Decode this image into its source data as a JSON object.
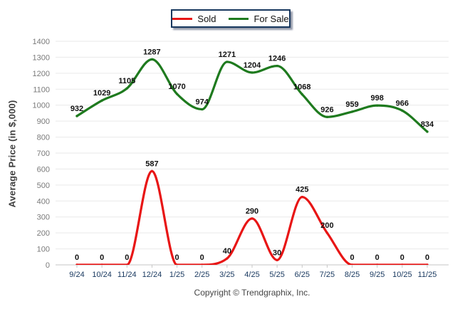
{
  "ylabel": "Average Price (in $,000)",
  "footer": "Copyright © Trendgraphix, Inc.",
  "colors": {
    "sold": "#e81515",
    "for_sale": "#1e7a1e",
    "grid": "#e9e9e9",
    "axis": "#c6c6c6",
    "y_tick_text": "#7a7a7a",
    "x_tick_text": "#17375e",
    "data_label": "#111111",
    "legend_border": "#17375e"
  },
  "chart_data": {
    "type": "line",
    "x": [
      "9/24",
      "10/24",
      "11/24",
      "12/24",
      "1/25",
      "2/25",
      "3/25",
      "4/25",
      "5/25",
      "6/25",
      "7/25",
      "8/25",
      "9/25",
      "10/25",
      "11/25"
    ],
    "series": [
      {
        "name": "Sold",
        "color": "#e81515",
        "values": [
          0,
          0,
          0,
          587,
          0,
          0,
          40,
          290,
          30,
          425,
          200,
          0,
          0,
          0,
          0
        ]
      },
      {
        "name": "For Sale",
        "color": "#1e7a1e",
        "values": [
          932,
          1029,
          1105,
          1287,
          1070,
          974,
          1271,
          1204,
          1246,
          1068,
          926,
          959,
          998,
          966,
          834
        ]
      }
    ],
    "title": "",
    "xlabel": "",
    "ylabel": "Average Price (in $,000)",
    "ylim": [
      0,
      1400
    ],
    "ytick_step": 100,
    "grid": "horizontal",
    "legend_position": "top-center",
    "point_labels_shown": true
  }
}
